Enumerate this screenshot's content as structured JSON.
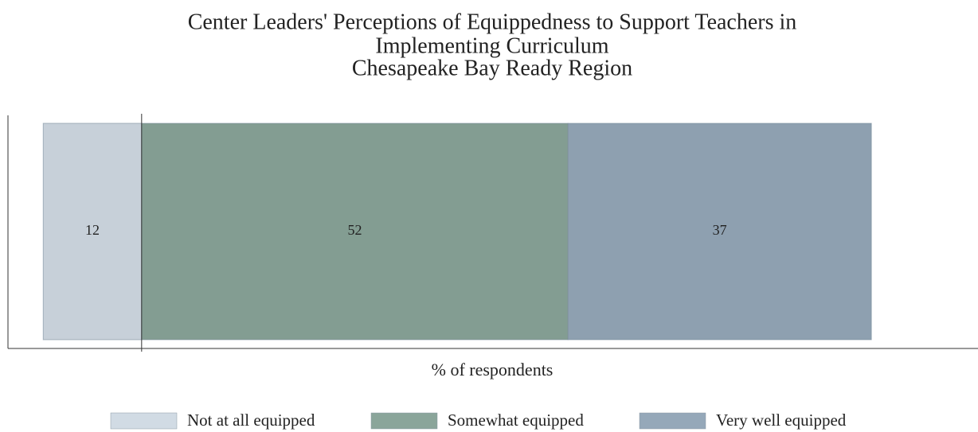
{
  "chart_data": {
    "type": "diverging_stacked_bar",
    "title": [
      "Center Leaders' Perceptions of Equippedness to Support Teachers in",
      "Implementing Curriculum",
      "Chesapeake Bay Ready Region"
    ],
    "x_label": "% of respondents",
    "diverging": true,
    "xlim": [
      -16.3,
      102
    ],
    "series": [
      {
        "name": "Not at all equipped",
        "color": "#d1dbe4",
        "values": [
          12
        ]
      },
      {
        "name": "Somewhat equipped",
        "color": "#8aa59a",
        "values": [
          52
        ]
      },
      {
        "name": "Very well equipped",
        "color": "#95a8b9",
        "values": [
          37
        ]
      }
    ],
    "legend": "bottom"
  }
}
